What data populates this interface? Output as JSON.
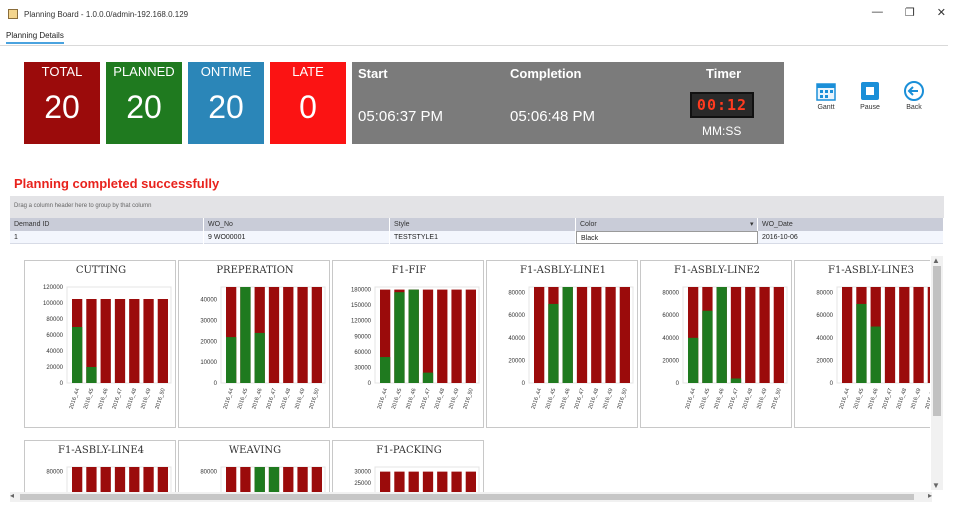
{
  "window": {
    "title": "Planning Board - 1.0.0.0/admin-192.168.0.129",
    "controls": [
      "—",
      "❐",
      "✕"
    ]
  },
  "tab": {
    "label": "Planning Details"
  },
  "stats": [
    {
      "label": "TOTAL",
      "value": "20",
      "color": "#9b0b0b"
    },
    {
      "label": "PLANNED",
      "value": "20",
      "color": "#1f7a1f"
    },
    {
      "label": "ONTIME",
      "value": "20",
      "color": "#2b86b8"
    },
    {
      "label": "LATE",
      "value": "0",
      "color": "#fb1313"
    }
  ],
  "timing": {
    "start_label": "Start",
    "start_value": "05:06:37 PM",
    "completion_label": "Completion",
    "completion_value": "05:06:48 PM",
    "timer_label": "Timer",
    "timer_value": "00:12",
    "timer_unit": "MM:SS"
  },
  "toolbar": {
    "gantt": "Gantt",
    "pause": "Pause",
    "back": "Back"
  },
  "status_message": "Planning completed successfully",
  "grid": {
    "group_hint": "Drag a column header here to group by that column",
    "columns": [
      "Demand ID",
      "WO_No",
      "Style",
      "Color",
      "WO_Date"
    ],
    "rows": [
      [
        "1",
        "9 WO00001",
        "TESTSTYLE1",
        "Black",
        "2016-10-06"
      ]
    ]
  },
  "chart_data": [
    {
      "type": "bar",
      "title": "CUTTING",
      "ytick_labels": [
        "120000",
        "100000",
        "80000",
        "60000",
        "40000",
        "20000",
        "0"
      ],
      "ylim": [
        0,
        120000
      ],
      "categories": [
        "2016_44",
        "2016_45",
        "2016_46",
        "2016_47",
        "2016_48",
        "2016_49",
        "2016_50"
      ],
      "series": [
        {
          "total": [
            105000,
            105000,
            105000,
            105000,
            105000,
            105000,
            105000
          ],
          "planned": [
            70000,
            20000,
            0,
            0,
            0,
            0,
            0
          ]
        }
      ]
    },
    {
      "type": "bar",
      "title": "PREPERATION",
      "ytick_labels": [
        "40000",
        "30000",
        "20000",
        "10000",
        "0"
      ],
      "ylim": [
        0,
        46000
      ],
      "categories": [
        "2016_44",
        "2016_45",
        "2016_46",
        "2016_47",
        "2016_48",
        "2016_49",
        "2016_50"
      ],
      "series": [
        {
          "total": [
            46000,
            46000,
            46000,
            46000,
            46000,
            46000,
            46000
          ],
          "planned": [
            22000,
            46000,
            24000,
            0,
            0,
            0,
            0
          ]
        }
      ]
    },
    {
      "type": "bar",
      "title": "F1-FIF",
      "ytick_labels": [
        "180000",
        "150000",
        "120000",
        "90000",
        "60000",
        "30000",
        "0"
      ],
      "ylim": [
        0,
        185000
      ],
      "categories": [
        "2016_44",
        "2016_45",
        "2016_46",
        "2016_47",
        "2016_48",
        "2016_49",
        "2016_50"
      ],
      "series": [
        {
          "total": [
            180000,
            180000,
            180000,
            180000,
            180000,
            180000,
            180000
          ],
          "planned": [
            50000,
            175000,
            180000,
            20000,
            0,
            0,
            0
          ]
        }
      ]
    },
    {
      "type": "bar",
      "title": "F1-ASBLY-LINE1",
      "ytick_labels": [
        "80000",
        "60000",
        "40000",
        "20000",
        "0"
      ],
      "ylim": [
        0,
        85000
      ],
      "categories": [
        "2016_44",
        "2016_45",
        "2016_46",
        "2016_47",
        "2016_48",
        "2016_49",
        "2016_50"
      ],
      "series": [
        {
          "total": [
            85000,
            85000,
            85000,
            85000,
            85000,
            85000,
            85000
          ],
          "planned": [
            0,
            70000,
            85000,
            0,
            0,
            0,
            0
          ]
        }
      ]
    },
    {
      "type": "bar",
      "title": "F1-ASBLY-LINE2",
      "ytick_labels": [
        "80000",
        "60000",
        "40000",
        "20000",
        "0"
      ],
      "ylim": [
        0,
        85000
      ],
      "categories": [
        "2016_44",
        "2016_45",
        "2016_46",
        "2016_47",
        "2016_48",
        "2016_49",
        "2016_50"
      ],
      "series": [
        {
          "total": [
            85000,
            85000,
            85000,
            85000,
            85000,
            85000,
            85000
          ],
          "planned": [
            40000,
            64000,
            85000,
            4000,
            0,
            0,
            0
          ]
        }
      ]
    },
    {
      "type": "bar",
      "title": "F1-ASBLY-LINE3",
      "ytick_labels": [
        "80000",
        "60000",
        "40000",
        "20000",
        "0"
      ],
      "ylim": [
        0,
        85000
      ],
      "categories": [
        "2016_44",
        "2016_45",
        "2016_46",
        "2016_47",
        "2016_48",
        "2016_49",
        "2016_50"
      ],
      "series": [
        {
          "total": [
            85000,
            85000,
            85000,
            85000,
            85000,
            85000,
            85000
          ],
          "planned": [
            0,
            70000,
            50000,
            0,
            0,
            0,
            0
          ]
        }
      ]
    },
    {
      "type": "bar",
      "title": "F1-ASBLY-LINE4",
      "ytick_labels": [
        "80000"
      ],
      "ylim": [
        0,
        85000
      ],
      "categories": [],
      "series": [
        {
          "total": [
            85000,
            85000,
            85000,
            85000,
            85000,
            85000,
            85000
          ],
          "planned": [
            0,
            0,
            0,
            0,
            0,
            0,
            0
          ]
        }
      ]
    },
    {
      "type": "bar",
      "title": "WEAVING",
      "ytick_labels": [
        "80000"
      ],
      "ylim": [
        0,
        85000
      ],
      "categories": [],
      "series": [
        {
          "total": [
            85000,
            85000,
            85000,
            85000,
            85000,
            85000,
            85000
          ],
          "planned": [
            0,
            0,
            85000,
            85000,
            0,
            0,
            0
          ]
        }
      ]
    },
    {
      "type": "bar",
      "title": "F1-PACKING",
      "ytick_labels": [
        "30000",
        "25000"
      ],
      "ylim": [
        0,
        32000
      ],
      "categories": [],
      "series": [
        {
          "total": [
            30000,
            30000,
            30000,
            30000,
            30000,
            30000,
            30000
          ],
          "planned": [
            0,
            0,
            0,
            0,
            0,
            0,
            0
          ]
        }
      ]
    }
  ],
  "colors": {
    "bar_total": "#9b0b0b",
    "bar_planned": "#1f7a1f"
  }
}
